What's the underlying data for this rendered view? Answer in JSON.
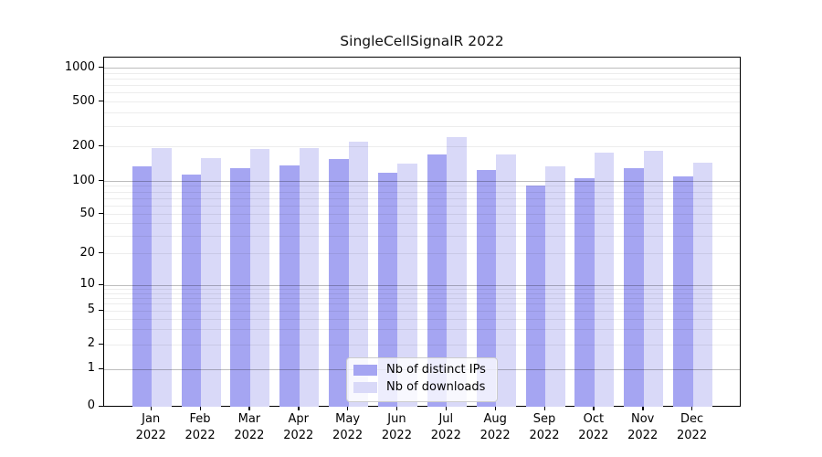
{
  "chart_data": {
    "type": "bar",
    "title": "SingleCellSignalR 2022",
    "categories": [
      "Jan",
      "Feb",
      "Mar",
      "Apr",
      "May",
      "Jun",
      "Jul",
      "Aug",
      "Sep",
      "Oct",
      "Nov",
      "Dec"
    ],
    "year": "2022",
    "series": [
      {
        "name": "Nb of distinct IPs",
        "color": "#a5a5f2",
        "values": [
          136,
          115,
          130,
          138,
          155,
          120,
          170,
          126,
          92,
          106,
          131,
          111
        ]
      },
      {
        "name": "Nb of downloads",
        "color": "#d9d9f8",
        "values": [
          195,
          160,
          191,
          196,
          223,
          143,
          242,
          171,
          134,
          178,
          184,
          145
        ]
      }
    ],
    "xlabel": "",
    "ylabel": "",
    "yscale": "symlog",
    "y_ticks": [
      0,
      1,
      2,
      5,
      10,
      20,
      50,
      100,
      200,
      500,
      1000
    ],
    "ylim": [
      0,
      1200
    ],
    "grid": true,
    "legend_position": "lower center"
  },
  "colors": {
    "background": "#ffffff",
    "axis": "#000000",
    "major_grid": "#bdbdbd",
    "minor_grid": "#ededed",
    "legend_border": "#cccccc"
  }
}
